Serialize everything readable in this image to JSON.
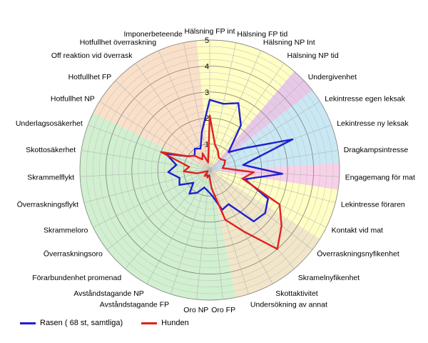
{
  "chart_data": {
    "type": "radar",
    "title": "",
    "r_range": [
      0,
      5
    ],
    "r_ticks": [
      "1",
      "2",
      "3",
      "4",
      "5"
    ],
    "categories": [
      "Hälsning FP int",
      "Hälsning FP tid",
      "Hälsning NP Int",
      "Hälsning NP tid",
      "Undergivenhet",
      "Lekintresse egen leksak",
      "Lekintresse ny leksak",
      "Dragkampsintresse",
      "Engagemang för mat",
      "Lekintresse föraren",
      "Kontakt vid mat",
      "Överraskningsnyfikenhet",
      "Skramelnyfikenhet",
      "Skottaktivitet",
      "Undersökning av annat",
      "Oro FP",
      "Oro NP",
      "Avståndstagande FP",
      "Avståndstagande NP",
      "Förarbundenhet promenad",
      "Överraskningsoro",
      "Skrammeloro",
      "Överraskningsflykt",
      "Skrammelflykt",
      "Skottosäkerhet",
      "Underlagsosäkerhet",
      "Hotfullhet NP",
      "Hotfullhet FP",
      "Off reaktion vid överrask",
      "Hotfullhet överraskning",
      "Imponerbeteende"
    ],
    "sectors": [
      {
        "from": 0,
        "to": 4,
        "color": "#ffffc4"
      },
      {
        "from": 4,
        "to": 5,
        "color": "#e8c8e8"
      },
      {
        "from": 5,
        "to": 8,
        "color": "#c8e8f4"
      },
      {
        "from": 8,
        "to": 9,
        "color": "#f8d0e8"
      },
      {
        "from": 9,
        "to": 11,
        "color": "#ffffc4"
      },
      {
        "from": 11,
        "to": 15,
        "color": "#f2e6c8"
      },
      {
        "from": 15,
        "to": 26,
        "color": "#d0f0d0"
      },
      {
        "from": 26,
        "to": 31,
        "color": "#fae0c8"
      }
    ],
    "series": [
      {
        "name": "Rasen ( 68 st, samtliga)",
        "color": "#1f1fcf",
        "values": [
          2.7,
          2.6,
          2.8,
          2.1,
          1.0,
          1.6,
          3.4,
          1.3,
          2.8,
          1.4,
          2.5,
          2.7,
          2.6,
          1.5,
          1.6,
          1.0,
          0.8,
          0.7,
          1.0,
          1.2,
          0.8,
          1.3,
          1.2,
          1.6,
          1.3,
          1.8,
          1.0,
          0.8,
          1.0,
          0.9,
          1.5
        ]
      },
      {
        "name": "Hunden",
        "color": "#e02020",
        "values": [
          2.1,
          1.0,
          0.8,
          0.6,
          0.6,
          0.7,
          0.6,
          0.5,
          1.7,
          1.3,
          3.0,
          3.5,
          4.0,
          2.7,
          2.0,
          0.7,
          0.2,
          0.3,
          0.2,
          0.3,
          0.1,
          0.1,
          0.5,
          1.0,
          0.8,
          2.0,
          1.0,
          0.8,
          0.5,
          0.7,
          0.3
        ]
      }
    ],
    "legend_position": "bottom-left"
  },
  "legend": {
    "series_a": "Rasen ( 68 st, samtliga)",
    "series_b": "Hunden"
  }
}
